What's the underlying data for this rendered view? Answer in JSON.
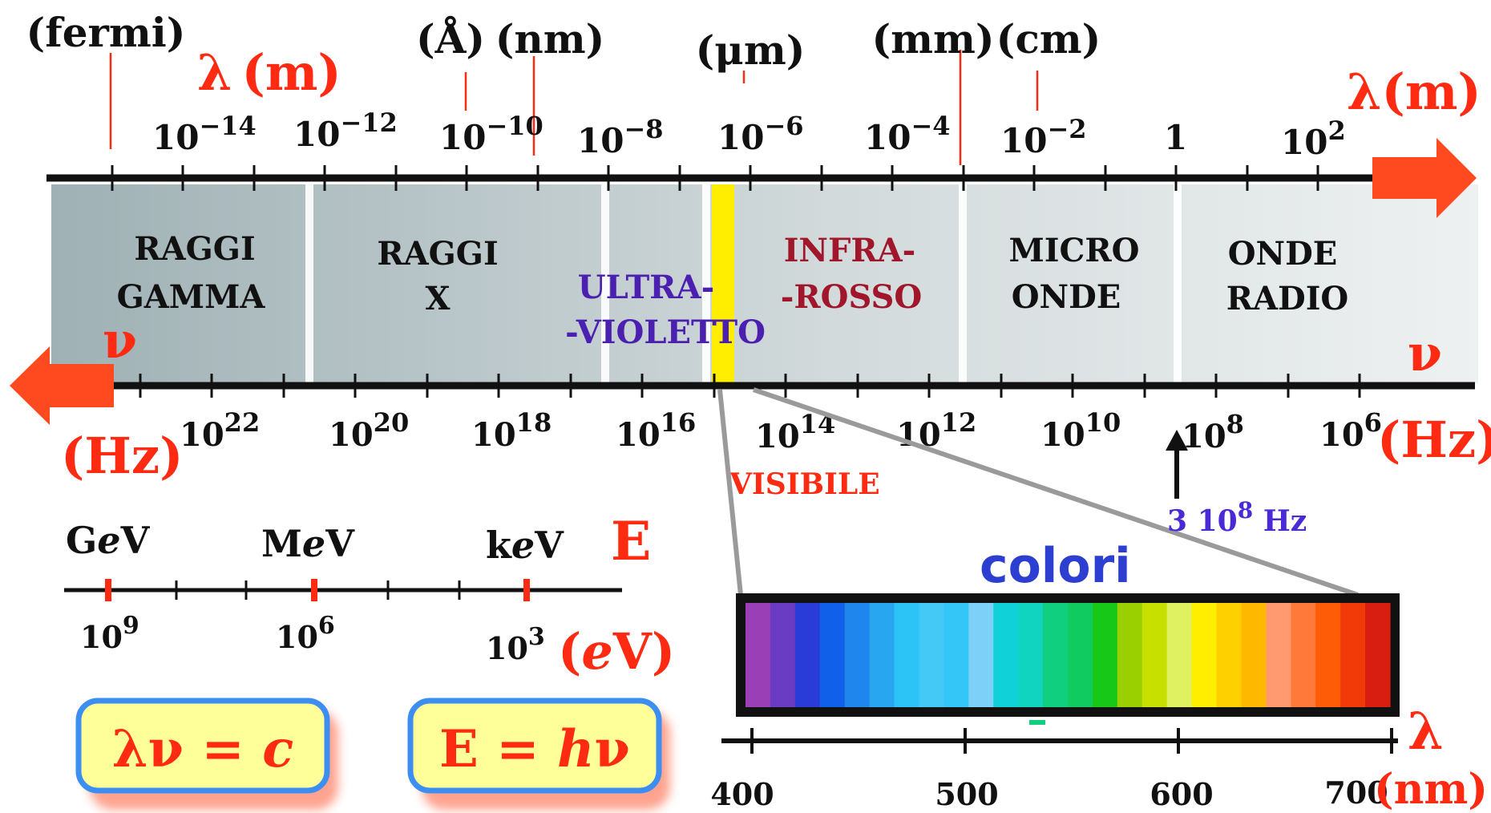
{
  "colors": {
    "axis": "#111111",
    "accent_red": "#ff2a12",
    "arrow_orange": "#ff4a1f",
    "uv_text": "#4b1fb0",
    "ir_text": "#a0162a",
    "visible_band": "#ffee00",
    "connector": "#9a9a9a",
    "freq_note": "#4a2ad6",
    "colori_text": "#2d3fd0",
    "formula_fill": "#ffff99",
    "formula_border": "#3d8ef2",
    "formula_shadow": "#ff6644",
    "band_dark": "#9fb1b5",
    "band_light": "#eef1f1"
  },
  "wavelength_axis": {
    "symbol": "λ",
    "unit": "(m)",
    "header_symbol": "λ",
    "header_unit": "(m)",
    "ticks": [
      {
        "base": "10",
        "exp": "−14"
      },
      {
        "base": "10",
        "exp": "−12"
      },
      {
        "base": "10",
        "exp": "−10"
      },
      {
        "base": "10",
        "exp": "−8"
      },
      {
        "base": "10",
        "exp": "−6"
      },
      {
        "base": "10",
        "exp": "−4"
      },
      {
        "base": "10",
        "exp": "−2"
      },
      {
        "base": "1",
        "exp": ""
      },
      {
        "base": "10",
        "exp": "2"
      }
    ],
    "units": [
      {
        "label": "(fermi)"
      },
      {
        "label": "(Å)"
      },
      {
        "label": "(nm)"
      },
      {
        "label": "(μm)"
      },
      {
        "label": "(mm)"
      },
      {
        "label": "(cm)"
      }
    ]
  },
  "frequency_axis": {
    "symbol_left": "ν",
    "unit_left": "(Hz)",
    "symbol_right": "ν",
    "unit_right": "(Hz)",
    "ticks": [
      {
        "base": "10",
        "exp": "22"
      },
      {
        "base": "10",
        "exp": "20"
      },
      {
        "base": "10",
        "exp": "18"
      },
      {
        "base": "10",
        "exp": "16"
      },
      {
        "base": "10",
        "exp": "14"
      },
      {
        "base": "10",
        "exp": "12"
      },
      {
        "base": "10",
        "exp": "10"
      },
      {
        "base": "10",
        "exp": "8"
      },
      {
        "base": "10",
        "exp": "6"
      }
    ]
  },
  "bands": [
    {
      "name": "gamma",
      "line1": "RAGGI",
      "line2": "GAMMA"
    },
    {
      "name": "x",
      "line1": "RAGGI",
      "line2": "X"
    },
    {
      "name": "uv",
      "line1": "ULTRA-",
      "line2": "-VIOLETTO"
    },
    {
      "name": "ir",
      "line1": "INFRA-",
      "line2": "-ROSSO"
    },
    {
      "name": "micro",
      "line1": "MICRO",
      "line2": "ONDE"
    },
    {
      "name": "radio",
      "line1": "ONDE",
      "line2": "RADIO"
    }
  ],
  "visible_label": "VISIBILE",
  "frequency_note": {
    "base": "3 10",
    "exp": "8",
    "unit": " Hz"
  },
  "energy": {
    "symbol": "E",
    "unit_open": "(",
    "unit_e": "e",
    "unit_v": "V)",
    "units": [
      {
        "pre": "G",
        "e": "e",
        "post": "V"
      },
      {
        "pre": "M",
        "e": "e",
        "post": "V"
      },
      {
        "pre": "k",
        "e": "e",
        "post": "V"
      }
    ],
    "ticks": [
      {
        "base": "10",
        "exp": "9"
      },
      {
        "base": "10",
        "exp": "6"
      },
      {
        "base": "10",
        "exp": "3"
      }
    ]
  },
  "visible_spectrum": {
    "title": "colori",
    "axis_symbol": "λ",
    "axis_unit": "(nm)",
    "ticks": [
      "400",
      "500",
      "600",
      "700"
    ],
    "stripe_colors": [
      "#9a3fb5",
      "#6a3cc4",
      "#2a3cd8",
      "#1060ea",
      "#1e86ec",
      "#28a6f0",
      "#2cc4f6",
      "#44c8f6",
      "#34c6f6",
      "#7dd0f8",
      "#10d0d8",
      "#10d4c0",
      "#10d080",
      "#10cc60",
      "#18c818",
      "#9ad000",
      "#c8e000",
      "#dff060",
      "#ffee00",
      "#ffd000",
      "#ffb800",
      "#ff9a70",
      "#ff7a3a",
      "#ff5c08",
      "#f23a08",
      "#d81e10"
    ]
  },
  "formulas": [
    {
      "name": "wave-relation",
      "a": "λν = ",
      "b": "c"
    },
    {
      "name": "energy-relation",
      "a": "E = ",
      "b": "h",
      "c": "ν"
    }
  ]
}
